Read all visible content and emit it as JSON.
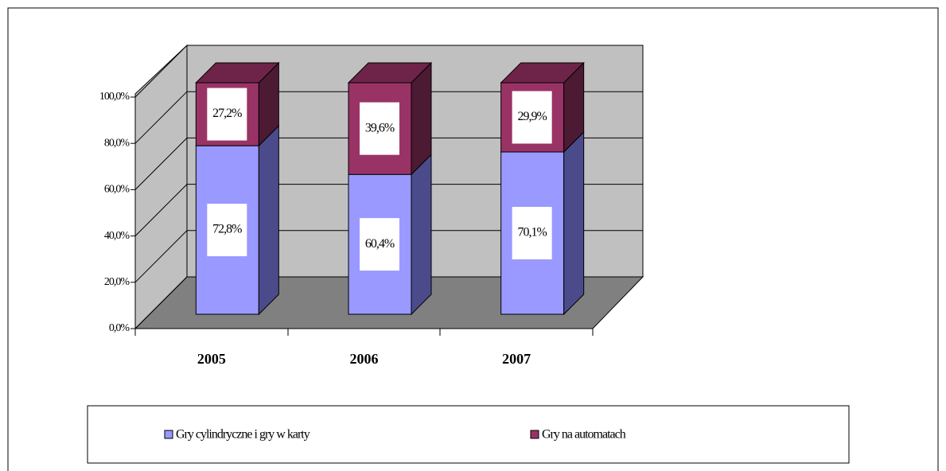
{
  "chart_data": {
    "type": "bar3d-stacked",
    "categories": [
      "2005",
      "2006",
      "2007"
    ],
    "series": [
      {
        "name": "Gry cylindryczne i gry w karty",
        "color": "#9999ff",
        "side": "#4b4b8c",
        "top": "#7676c8",
        "values": [
          72.8,
          60.4,
          70.1
        ],
        "value_labels": [
          "72,8%",
          "60,4%",
          "70,1%"
        ]
      },
      {
        "name": "Gry na automatach",
        "color": "#993366",
        "side": "#4d1a33",
        "top": "#6e2448",
        "values": [
          27.2,
          39.6,
          29.9
        ],
        "value_labels": [
          "27,2%",
          "39,6%",
          "29,9%"
        ]
      }
    ],
    "ylim": [
      0,
      100
    ],
    "yticks": [
      {
        "value": 0,
        "label": "0,0%"
      },
      {
        "value": 20,
        "label": "20,0%"
      },
      {
        "value": 40,
        "label": "40,0%"
      },
      {
        "value": 60,
        "label": "60,0%"
      },
      {
        "value": 80,
        "label": "80,0%"
      },
      {
        "value": 100,
        "label": "100,0%"
      }
    ],
    "grid": true
  }
}
